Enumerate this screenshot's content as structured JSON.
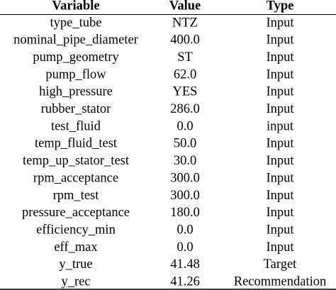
{
  "table": {
    "header": [
      "Variable",
      "Value",
      "Type"
    ],
    "rows": [
      [
        "type_tube",
        "NTZ",
        "Input"
      ],
      [
        "nominal_pipe_diameter",
        "400.0",
        "Input"
      ],
      [
        "pump_geometry",
        "ST",
        "Input"
      ],
      [
        "pump_flow",
        "62.0",
        "Input"
      ],
      [
        "high_pressure",
        "YES",
        "Input"
      ],
      [
        "rubber_stator",
        "286.0",
        "Input"
      ],
      [
        "test_fluid",
        "0.0",
        "input"
      ],
      [
        "temp_fluid_test",
        "50.0",
        "Input"
      ],
      [
        "temp_up_stator_test",
        "30.0",
        "Input"
      ],
      [
        "rpm_acceptance",
        "300.0",
        "Input"
      ],
      [
        "rpm_test",
        "300.0",
        "Input"
      ],
      [
        "pressure_acceptance",
        "180.0",
        "Input"
      ],
      [
        "efficiency_min",
        "0.0",
        "Input"
      ],
      [
        "eff_max",
        "0.0",
        "Input"
      ],
      [
        "y_true",
        "41.48",
        "Target"
      ],
      [
        "y_rec",
        "41.26",
        "Recommendation"
      ]
    ]
  }
}
